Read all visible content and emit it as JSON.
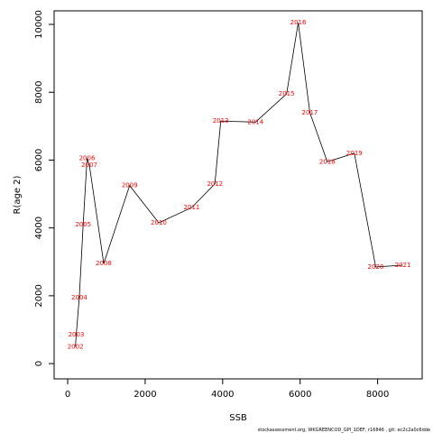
{
  "chart_data": {
    "type": "line",
    "xlabel": "SSB",
    "ylabel": "R(age 2)",
    "xlim": [
      -350,
      9150
    ],
    "ylim": [
      -450,
      10400
    ],
    "x_ticks": [
      0,
      2000,
      4000,
      6000,
      8000
    ],
    "y_ticks": [
      0,
      2000,
      4000,
      6000,
      8000,
      10000
    ],
    "line_color": "#000000",
    "label_color": "#ff0000",
    "points": [
      {
        "year": "2002",
        "x": 200,
        "y": 500
      },
      {
        "year": "2003",
        "x": 220,
        "y": 850
      },
      {
        "year": "2004",
        "x": 300,
        "y": 1950
      },
      {
        "year": "2005",
        "x": 400,
        "y": 4100
      },
      {
        "year": "2006",
        "x": 500,
        "y": 6050
      },
      {
        "year": "2007",
        "x": 560,
        "y": 5850
      },
      {
        "year": "2008",
        "x": 930,
        "y": 2950
      },
      {
        "year": "2009",
        "x": 1600,
        "y": 5250
      },
      {
        "year": "2010",
        "x": 2350,
        "y": 4150
      },
      {
        "year": "2011",
        "x": 3200,
        "y": 4600
      },
      {
        "year": "2012",
        "x": 3800,
        "y": 5300
      },
      {
        "year": "2013",
        "x": 3950,
        "y": 7150
      },
      {
        "year": "2014",
        "x": 4850,
        "y": 7120
      },
      {
        "year": "2015",
        "x": 5650,
        "y": 7950
      },
      {
        "year": "2016",
        "x": 5950,
        "y": 10050
      },
      {
        "year": "2017",
        "x": 6250,
        "y": 7400
      },
      {
        "year": "2018",
        "x": 6700,
        "y": 5950
      },
      {
        "year": "2019",
        "x": 7400,
        "y": 6200
      },
      {
        "year": "2020",
        "x": 7950,
        "y": 2850
      },
      {
        "year": "2021",
        "x": 8650,
        "y": 2900
      }
    ]
  },
  "footer": "stockassessment.org,  WKGREENCOD_GPI_1DEF,  r16846 ,  git:  ec2c2a0c6dde"
}
